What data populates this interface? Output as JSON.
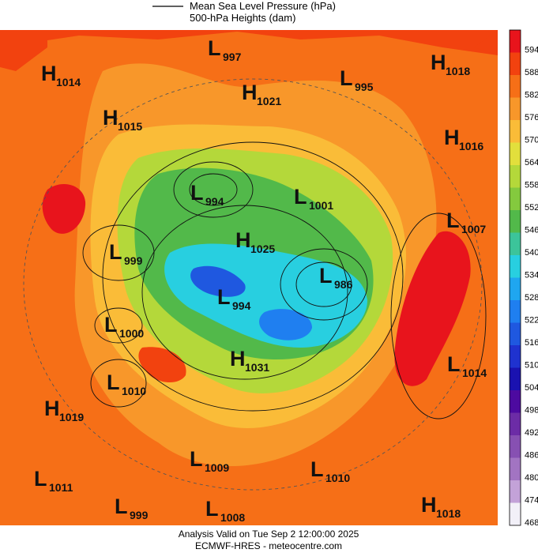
{
  "legend": [
    "Mean Sea Level Pressure (hPa)",
    "500-hPa Heights (dam)"
  ],
  "colorbar": {
    "levels": [
      594,
      588,
      582,
      576,
      570,
      564,
      558,
      552,
      546,
      540,
      534,
      528,
      522,
      516,
      510,
      504,
      498,
      492,
      486,
      480,
      474,
      468
    ],
    "colors": [
      "#e8141c",
      "#f2420f",
      "#f66f17",
      "#f8972a",
      "#fabc38",
      "#e2df3c",
      "#b4d83a",
      "#84c93e",
      "#52b94a",
      "#3cc49a",
      "#28cfe0",
      "#1fa6f0",
      "#1f7ff0",
      "#1f58e0",
      "#1f32cf",
      "#1a12b0",
      "#4d0aa0",
      "#6c2ca6",
      "#8750b2",
      "#a274c2",
      "#c3a2d8",
      "#f2f0f8"
    ]
  },
  "systems": [
    {
      "letter": "H",
      "value": 1014
    },
    {
      "letter": "H",
      "value": 1015
    },
    {
      "letter": "L",
      "value": 997
    },
    {
      "letter": "H",
      "value": 1021
    },
    {
      "letter": "L",
      "value": 995
    },
    {
      "letter": "H",
      "value": 1018
    },
    {
      "letter": "H",
      "value": 1016
    },
    {
      "letter": "L",
      "value": 994
    },
    {
      "letter": "L",
      "value": 1001
    },
    {
      "letter": "L",
      "value": 1007
    },
    {
      "letter": "L",
      "value": 999
    },
    {
      "letter": "H",
      "value": 1025
    },
    {
      "letter": "L",
      "value": 986
    },
    {
      "letter": "L",
      "value": 994
    },
    {
      "letter": "L",
      "value": 1000
    },
    {
      "letter": "H",
      "value": 1031
    },
    {
      "letter": "L",
      "value": 1014
    },
    {
      "letter": "L",
      "value": 1010
    },
    {
      "letter": "H",
      "value": 1019
    },
    {
      "letter": "L",
      "value": 1009
    },
    {
      "letter": "L",
      "value": 1010
    },
    {
      "letter": "L",
      "value": 1011
    },
    {
      "letter": "L",
      "value": 999
    },
    {
      "letter": "L",
      "value": 1008
    },
    {
      "letter": "H",
      "value": 1018
    }
  ],
  "footer": [
    "Analysis Valid on Tue Sep  2 12:00:00 2025",
    "ECMWF-HRES  - meteocentre.com"
  ]
}
